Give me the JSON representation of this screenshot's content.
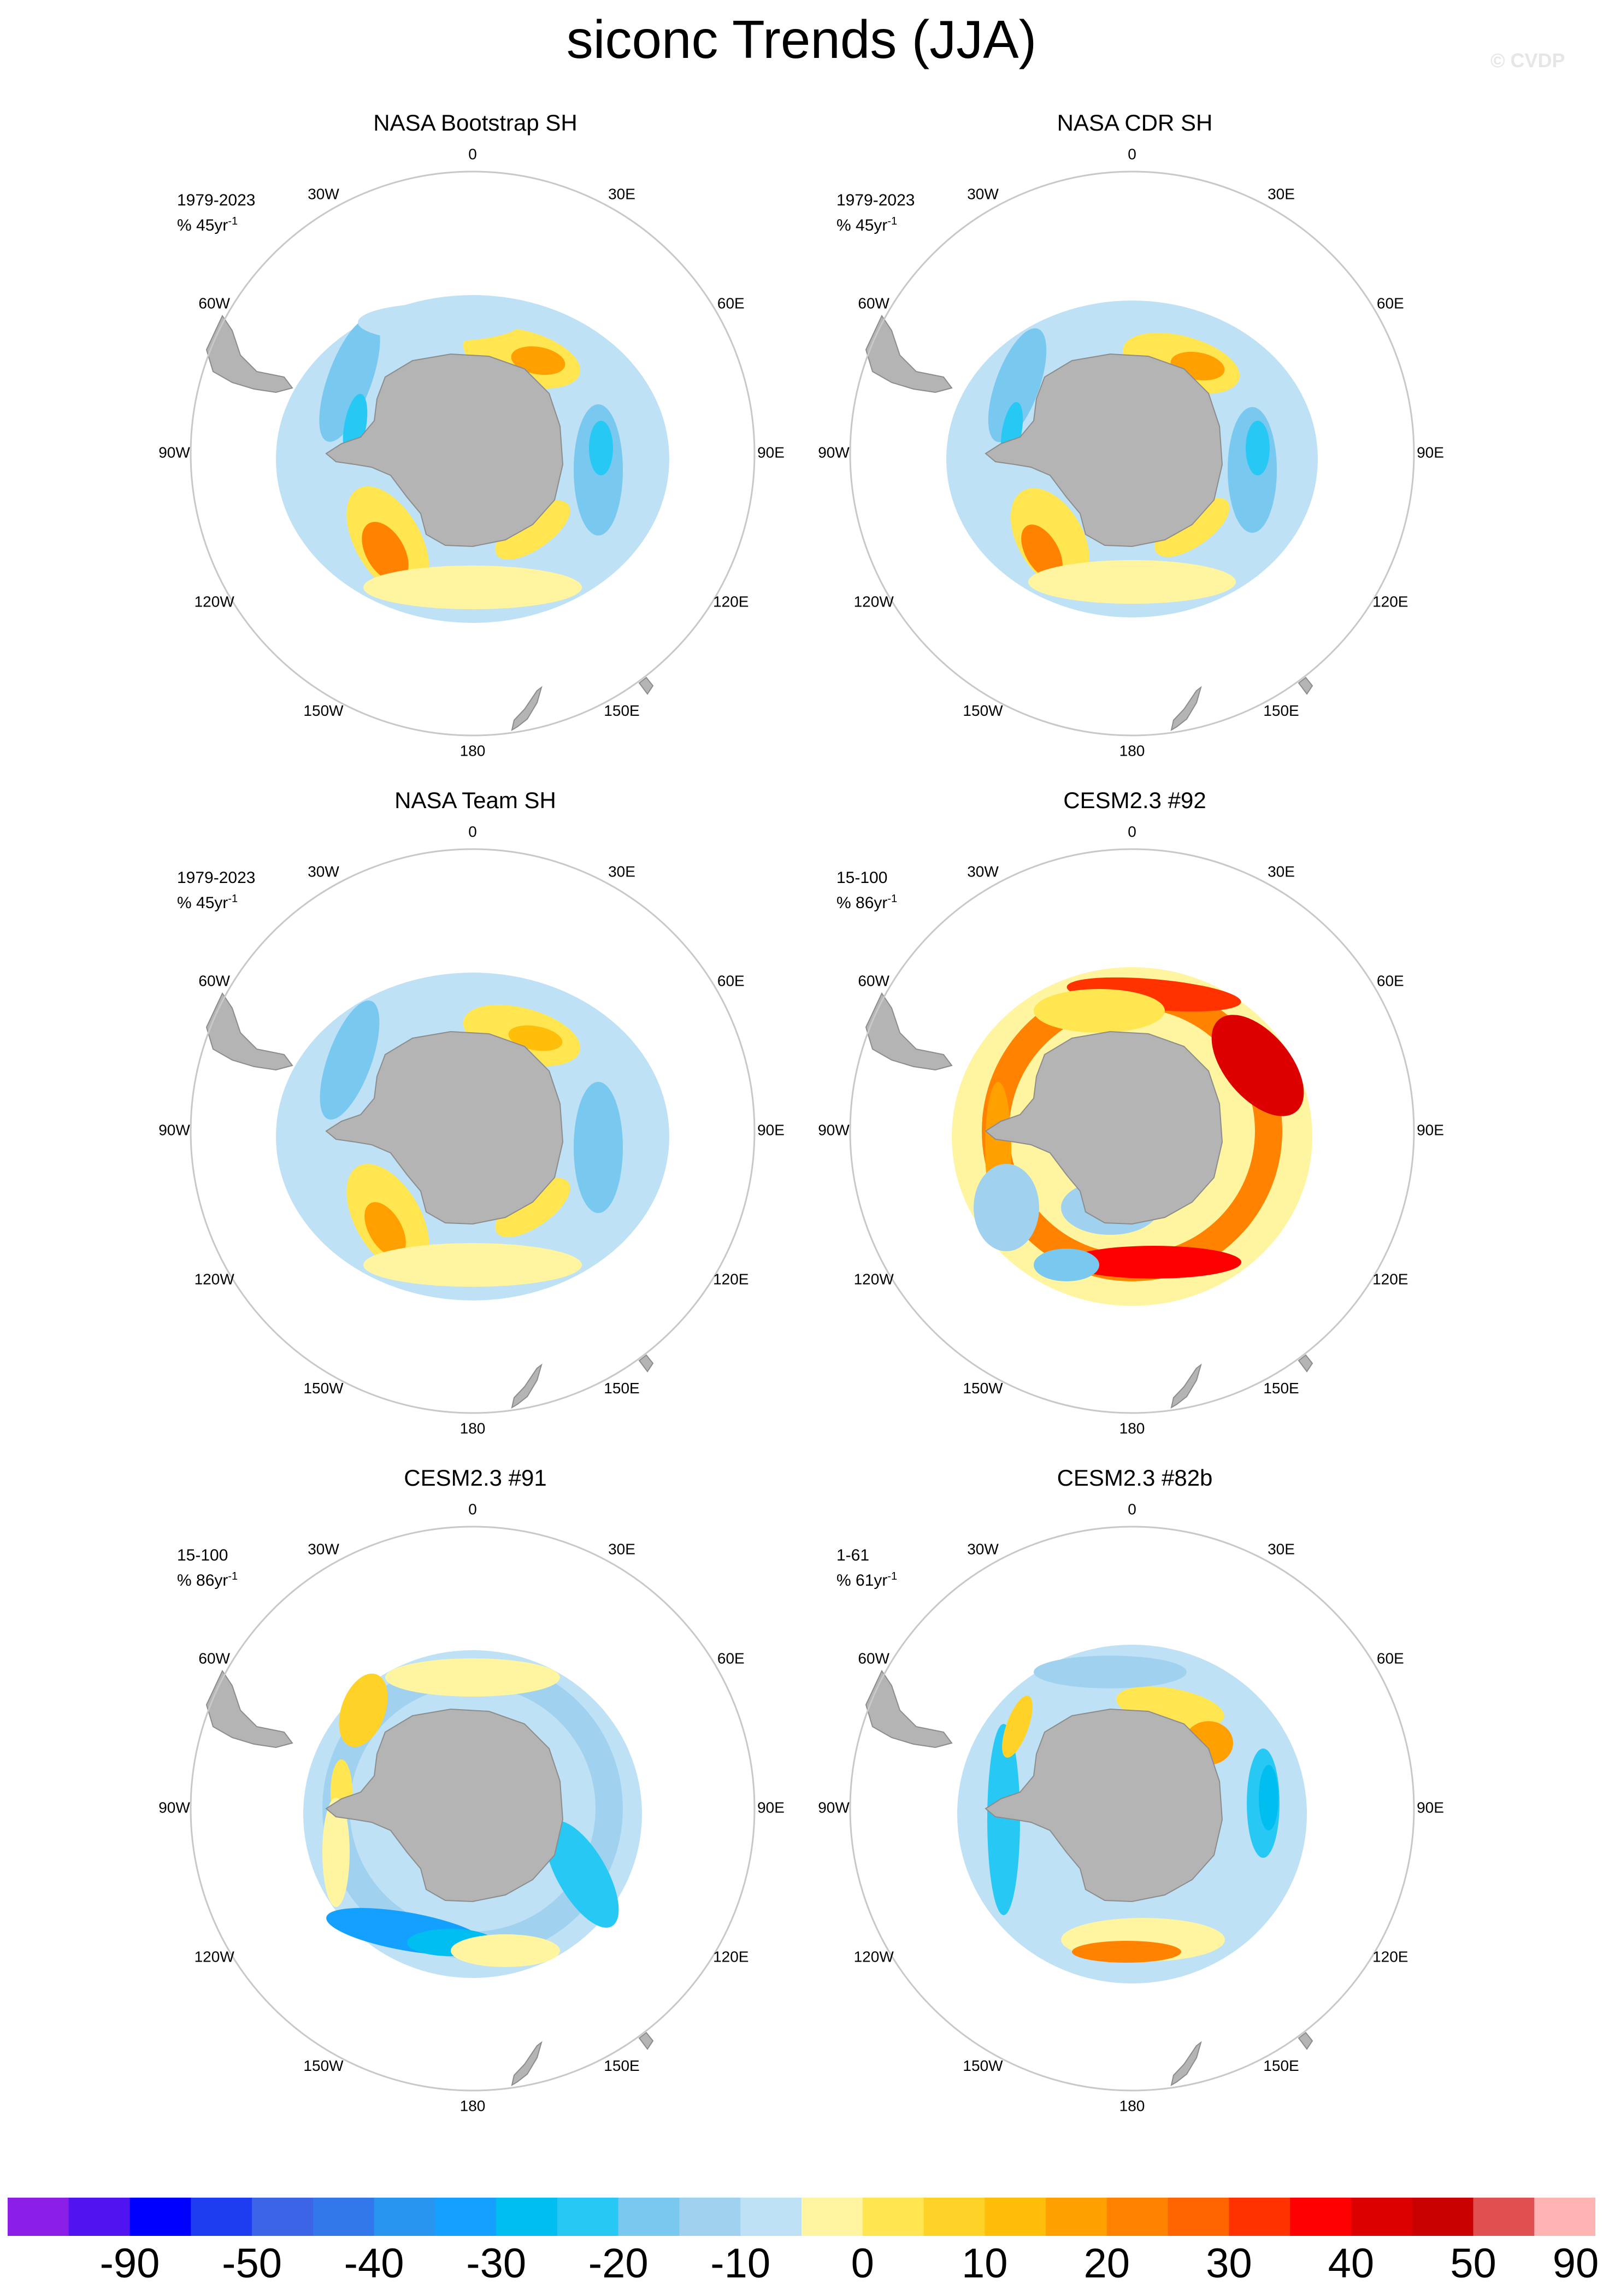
{
  "title": "siconc Trends (JJA)",
  "watermark": "© CVDP",
  "longitude_labels": [
    "0",
    "30E",
    "60E",
    "90E",
    "120E",
    "150E",
    "180",
    "150W",
    "120W",
    "90W",
    "60W",
    "30W"
  ],
  "panels": [
    {
      "title": "NASA Bootstrap SH",
      "period": "1979-2023",
      "units": "% 45yr",
      "units_sup": "-1",
      "data_type": "observed"
    },
    {
      "title": "NASA CDR SH",
      "period": "1979-2023",
      "units": "% 45yr",
      "units_sup": "-1",
      "data_type": "observed"
    },
    {
      "title": "NASA Team SH",
      "period": "1979-2023",
      "units": "% 45yr",
      "units_sup": "-1",
      "data_type": "observed"
    },
    {
      "title": "CESM2.3 #92",
      "period": "15-100",
      "units": "% 86yr",
      "units_sup": "-1",
      "data_type": "model"
    },
    {
      "title": "CESM2.3 #91",
      "period": "15-100",
      "units": "% 86yr",
      "units_sup": "-1",
      "data_type": "model"
    },
    {
      "title": "CESM2.3 #82b",
      "period": "1-61",
      "units": "% 61yr",
      "units_sup": "-1",
      "data_type": "model"
    }
  ],
  "colorbar": {
    "colors": [
      "#8a1ee6",
      "#5014f0",
      "#0000ff",
      "#1e3cf0",
      "#3c64e6",
      "#3278eb",
      "#2896f0",
      "#14a0ff",
      "#00bef0",
      "#28c8f5",
      "#78c8f0",
      "#a0d2f0",
      "#bee1f5",
      "#fff5a0",
      "#ffe650",
      "#ffd228",
      "#ffbe0a",
      "#ffa000",
      "#ff8200",
      "#ff6400",
      "#ff3200",
      "#ff0000",
      "#dc0000",
      "#c80000",
      "#e05050",
      "#ffb4b4"
    ],
    "labels": [
      {
        "text": "-90",
        "boundary": 2
      },
      {
        "text": "-50",
        "boundary": 4
      },
      {
        "text": "-40",
        "boundary": 6
      },
      {
        "text": "-30",
        "boundary": 8
      },
      {
        "text": "-20",
        "boundary": 10
      },
      {
        "text": "-10",
        "boundary": 12
      },
      {
        "text": "0",
        "boundary": 14
      },
      {
        "text": "10",
        "boundary": 16
      },
      {
        "text": "20",
        "boundary": 18
      },
      {
        "text": "30",
        "boundary": 20
      },
      {
        "text": "40",
        "boundary": 22
      },
      {
        "text": "50",
        "boundary": 24
      },
      {
        "text": "90",
        "boundary": 26
      }
    ]
  }
}
